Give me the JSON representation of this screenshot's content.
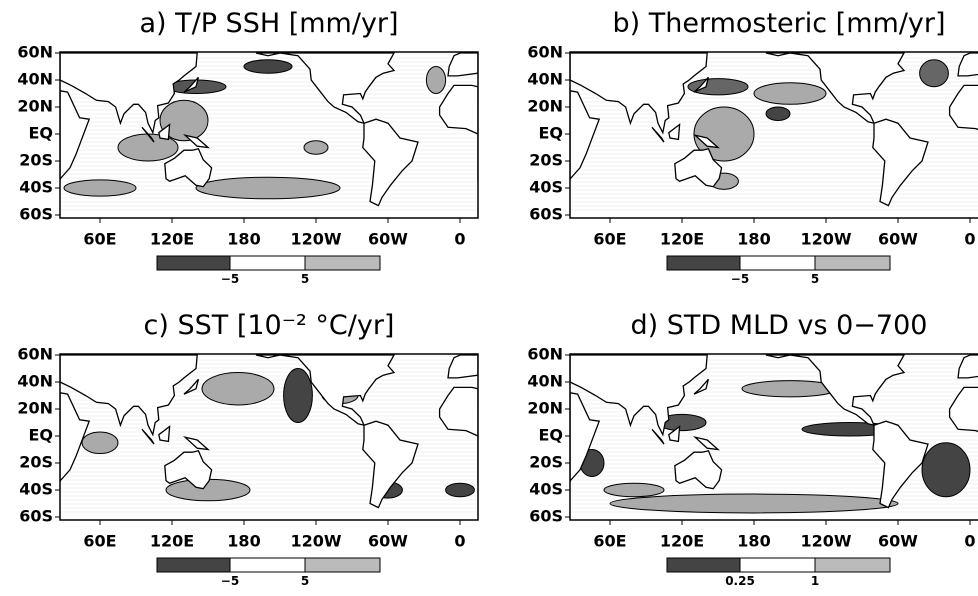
{
  "panels": [
    {
      "title": "a) T/P SSH  [mm/yr]",
      "y_labels": [
        "60N",
        "40N",
        "20N",
        "EQ",
        "20S",
        "40S",
        "60S"
      ],
      "x_labels": [
        "60E",
        "120E",
        "180",
        "120W",
        "60W",
        "0"
      ],
      "colorbar_labels": [
        "−5",
        "5"
      ]
    },
    {
      "title": "b) Thermosteric  [mm/yr]",
      "y_labels": [
        "60N",
        "40N",
        "20N",
        "EQ",
        "20S",
        "40S",
        "60S"
      ],
      "x_labels": [
        "60E",
        "120E",
        "180",
        "120W",
        "60W",
        "0"
      ],
      "colorbar_labels": [
        "−5",
        "5"
      ]
    },
    {
      "title": "c) SST  [10⁻² °C/yr]",
      "y_labels": [
        "60N",
        "40N",
        "20N",
        "EQ",
        "20S",
        "40S",
        "60S"
      ],
      "x_labels": [
        "60E",
        "120E",
        "180",
        "120W",
        "60W",
        "0"
      ],
      "colorbar_labels": [
        "−5",
        "5"
      ]
    },
    {
      "title": "d) STD MLD vs 0−700",
      "y_labels": [
        "60N",
        "40N",
        "20N",
        "EQ",
        "20S",
        "40S",
        "60S"
      ],
      "x_labels": [
        "60E",
        "120E",
        "180",
        "120W",
        "60W",
        "0"
      ],
      "colorbar_labels": [
        "0.25",
        "1"
      ]
    }
  ]
}
